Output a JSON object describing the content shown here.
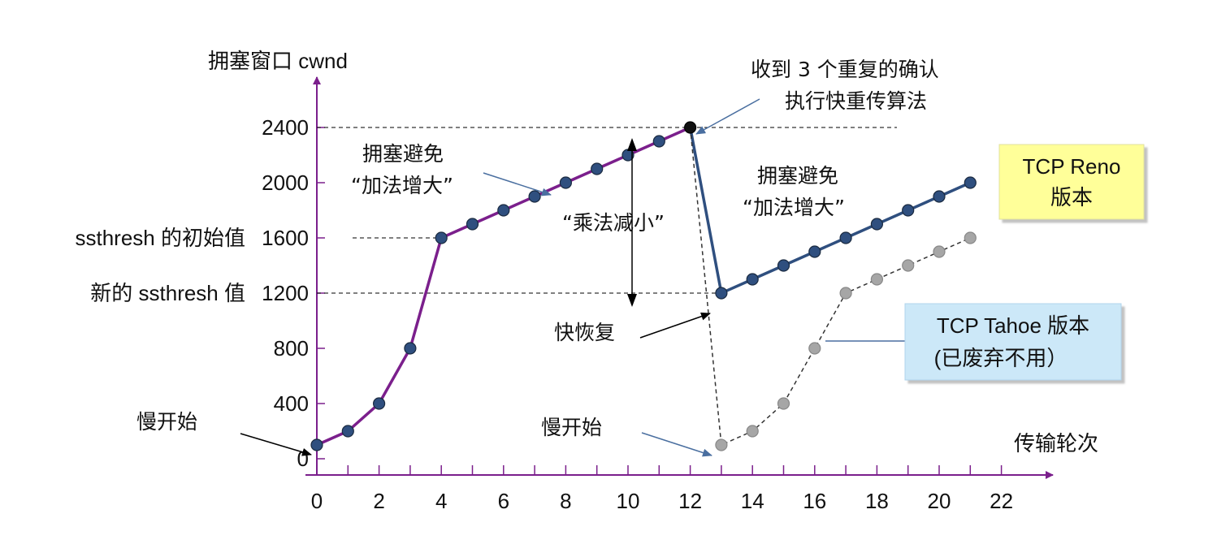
{
  "chart_data": {
    "type": "line",
    "xlabel": "传输轮次",
    "ylabel": "拥塞窗口 cwnd",
    "xlim": [
      0,
      23
    ],
    "ylim": [
      0,
      2600
    ],
    "x_ticks": [
      0,
      2,
      4,
      6,
      8,
      10,
      12,
      14,
      16,
      18,
      20,
      22
    ],
    "y_ticks": [
      0,
      400,
      800,
      1200,
      1600,
      2000,
      2400
    ],
    "y_tick_labels": [
      "0",
      "400",
      "800",
      "1200",
      "1600",
      "2000",
      "2400"
    ],
    "y_named_labels": [
      {
        "value": 1600,
        "text": "ssthresh 的初始值"
      },
      {
        "value": 1200,
        "text": "新的 ssthresh 值"
      }
    ],
    "series": [
      {
        "color": "#7B1F8C",
        "x": [
          0,
          1,
          2,
          3,
          4,
          5,
          6,
          7,
          8,
          9,
          10,
          11,
          12
        ],
        "values": [
          100,
          200,
          400,
          800,
          1600,
          1700,
          1800,
          1900,
          2000,
          2100,
          2200,
          2300,
          2400
        ]
      },
      {
        "name": "TCP Reno 版本",
        "color": "#2F4F7F",
        "x": [
          12,
          13,
          14,
          15,
          16,
          17,
          18,
          19,
          20,
          21
        ],
        "values": [
          2400,
          1200,
          1300,
          1400,
          1500,
          1600,
          1700,
          1800,
          1900,
          2000
        ]
      },
      {
        "name": "TCP Tahoe 版本 (已废弃不用)",
        "color": "#8C8C8C",
        "x": [
          12,
          13,
          14,
          15,
          16,
          17,
          18,
          19,
          20,
          21
        ],
        "values": [
          2400,
          100,
          200,
          400,
          800,
          1200,
          1300,
          1400,
          1500,
          1600
        ]
      }
    ],
    "annotations": {
      "slow_start_1": "慢开始",
      "slow_start_2": "慢开始",
      "congestion_avoid_1_line1": "拥塞避免",
      "congestion_avoid_1_line2": "“加法增大”",
      "congestion_avoid_2_line1": "拥塞避免",
      "congestion_avoid_2_line2": "“加法增大”",
      "mult_decrease": "“乘法减小”",
      "dup_ack_line1": "收到 3 个重复的确认",
      "dup_ack_line2": "执行快重传算法",
      "fast_recovery": "快恢复",
      "reno_box_line1": "TCP Reno",
      "reno_box_line2": "版本",
      "tahoe_box_line1": "TCP Tahoe 版本",
      "tahoe_box_line2": "(已废弃不用）"
    },
    "colors": {
      "axis": "#7B1F8C",
      "reno_box_fill": "#FFFF99",
      "tahoe_box_fill": "#CCE8F8",
      "arrow_blue": "#4A6FA0"
    },
    "grid": false
  }
}
